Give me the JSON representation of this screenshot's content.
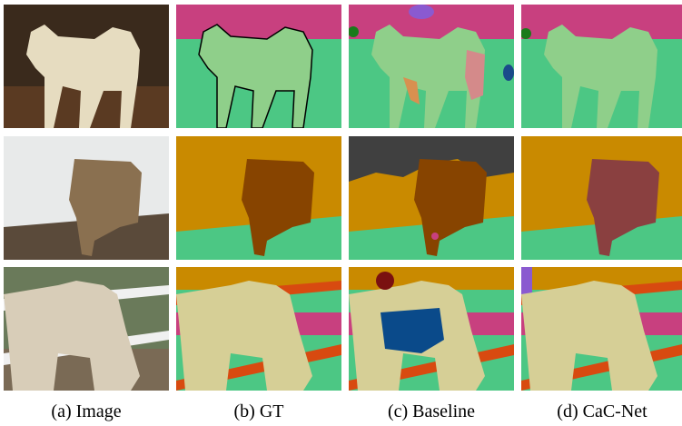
{
  "figure": {
    "captions": [
      "(a) Image",
      "(b) GT",
      "(c) Baseline",
      "(d) CaC-Net"
    ]
  }
}
